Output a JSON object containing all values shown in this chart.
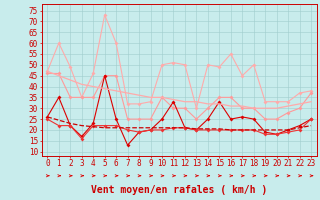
{
  "bg_color": "#c8ecec",
  "grid_color": "#a0cccc",
  "x_ticks": [
    0,
    1,
    2,
    3,
    4,
    5,
    6,
    7,
    8,
    9,
    10,
    11,
    12,
    13,
    14,
    15,
    16,
    17,
    18,
    19,
    20,
    21,
    22,
    23
  ],
  "xlabel": "Vent moyen/en rafales ( km/h )",
  "ylabel_ticks": [
    10,
    15,
    20,
    25,
    30,
    35,
    40,
    45,
    50,
    55,
    60,
    65,
    70,
    75
  ],
  "ylim": [
    8,
    78
  ],
  "xlim": [
    -0.5,
    23.5
  ],
  "series": [
    {
      "color": "#ffaaaa",
      "alpha": 1.0,
      "linewidth": 0.8,
      "marker": "D",
      "markersize": 2.0,
      "values": [
        47,
        60,
        49,
        35,
        46,
        73,
        60,
        32,
        32,
        33,
        50,
        51,
        50,
        30,
        50,
        49,
        55,
        45,
        50,
        33,
        33,
        33,
        37,
        38
      ]
    },
    {
      "color": "#ff9999",
      "alpha": 1.0,
      "linewidth": 0.8,
      "marker": "D",
      "markersize": 2.0,
      "values": [
        46,
        46,
        35,
        35,
        35,
        45,
        45,
        25,
        25,
        25,
        35,
        30,
        30,
        25,
        30,
        35,
        35,
        30,
        30,
        25,
        25,
        28,
        30,
        37
      ]
    },
    {
      "color": "#dd0000",
      "alpha": 1.0,
      "linewidth": 0.8,
      "marker": "D",
      "markersize": 2.0,
      "values": [
        26,
        35,
        22,
        17,
        23,
        45,
        25,
        13,
        19,
        20,
        25,
        33,
        21,
        20,
        25,
        33,
        25,
        26,
        25,
        19,
        18,
        20,
        22,
        25
      ]
    },
    {
      "color": "#ee3333",
      "alpha": 1.0,
      "linewidth": 0.8,
      "marker": "D",
      "markersize": 2.0,
      "values": [
        25,
        22,
        22,
        16,
        22,
        22,
        22,
        20,
        19,
        20,
        20,
        21,
        21,
        20,
        20,
        20,
        20,
        20,
        20,
        18,
        18,
        19,
        20,
        25
      ]
    },
    {
      "color": "#cc0000",
      "alpha": 1.0,
      "linewidth": 0.9,
      "marker": null,
      "markersize": 0,
      "linestyle": "--",
      "values": [
        26,
        24.5,
        23,
        22,
        21.5,
        21,
        21,
        21,
        21,
        21,
        21,
        21,
        21,
        20.5,
        20.5,
        20.5,
        20,
        20,
        20,
        20,
        20,
        20,
        21,
        22
      ]
    },
    {
      "color": "#ffaaaa",
      "alpha": 1.0,
      "linewidth": 0.9,
      "marker": null,
      "markersize": 0,
      "linestyle": "-",
      "values": [
        47,
        45,
        43,
        41,
        40,
        39,
        38,
        37,
        36,
        35,
        35,
        34,
        33,
        33,
        32,
        32,
        31,
        31,
        30,
        30,
        30,
        31,
        32,
        33
      ]
    }
  ],
  "axis_fontsize": 5.5,
  "xlabel_fontsize": 7.0,
  "arrow_color": "#dd0000"
}
